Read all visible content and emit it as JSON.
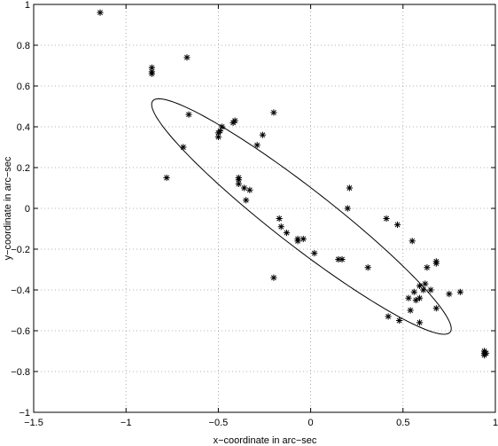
{
  "chart_data": {
    "type": "scatter",
    "title": "",
    "xlabel": "x−coordinate in arc−sec",
    "ylabel": "y−coordinate in arc−sec",
    "xlim": [
      -1.5,
      1
    ],
    "ylim": [
      -1,
      1
    ],
    "grid": true,
    "xticks": [
      -1.5,
      -1,
      -0.5,
      0,
      0.5,
      1
    ],
    "xtick_labels": [
      "−1.5",
      "−1",
      "−0.5",
      "0",
      "0.5",
      "1"
    ],
    "yticks": [
      -1,
      -0.8,
      -0.6,
      -0.4,
      -0.2,
      0,
      0.2,
      0.4,
      0.6,
      0.8,
      1
    ],
    "ytick_labels": [
      "−1",
      "−0.8",
      "−0.6",
      "−0.4",
      "−0.2",
      "0",
      "0.2",
      "0.4",
      "0.6",
      "0.8",
      "1"
    ],
    "series": [
      {
        "marker": "asterisk",
        "color": "#000000",
        "points": [
          [
            -1.14,
            0.96
          ],
          [
            -0.86,
            0.69
          ],
          [
            -0.86,
            0.67
          ],
          [
            -0.86,
            0.66
          ],
          [
            -0.67,
            0.74
          ],
          [
            -0.66,
            0.46
          ],
          [
            -0.69,
            0.3
          ],
          [
            -0.78,
            0.15
          ],
          [
            -0.5,
            0.35
          ],
          [
            -0.5,
            0.37
          ],
          [
            -0.49,
            0.38
          ],
          [
            -0.48,
            0.4
          ],
          [
            -0.42,
            0.42
          ],
          [
            -0.41,
            0.43
          ],
          [
            -0.26,
            0.36
          ],
          [
            -0.29,
            0.31
          ],
          [
            -0.2,
            0.47
          ],
          [
            -0.39,
            0.14
          ],
          [
            -0.39,
            0.12
          ],
          [
            -0.39,
            0.15
          ],
          [
            -0.36,
            0.1
          ],
          [
            -0.33,
            0.09
          ],
          [
            -0.35,
            0.04
          ],
          [
            -0.17,
            -0.05
          ],
          [
            -0.16,
            -0.09
          ],
          [
            -0.13,
            -0.12
          ],
          [
            -0.07,
            -0.16
          ],
          [
            -0.07,
            -0.15
          ],
          [
            -0.04,
            -0.15
          ],
          [
            0.02,
            -0.22
          ],
          [
            -0.2,
            -0.34
          ],
          [
            0.15,
            -0.25
          ],
          [
            0.17,
            -0.25
          ],
          [
            0.21,
            0.1
          ],
          [
            0.2,
            0.0
          ],
          [
            0.31,
            -0.29
          ],
          [
            0.41,
            -0.05
          ],
          [
            0.47,
            -0.08
          ],
          [
            0.55,
            -0.16
          ],
          [
            0.63,
            -0.29
          ],
          [
            0.68,
            -0.26
          ],
          [
            0.68,
            -0.27
          ],
          [
            0.42,
            -0.53
          ],
          [
            0.48,
            -0.55
          ],
          [
            0.54,
            -0.5
          ],
          [
            0.53,
            -0.44
          ],
          [
            0.56,
            -0.41
          ],
          [
            0.57,
            -0.45
          ],
          [
            0.59,
            -0.38
          ],
          [
            0.59,
            -0.44
          ],
          [
            0.61,
            -0.4
          ],
          [
            0.62,
            -0.37
          ],
          [
            0.65,
            -0.4
          ],
          [
            0.68,
            -0.49
          ],
          [
            0.59,
            -0.56
          ],
          [
            0.75,
            -0.42
          ],
          [
            0.81,
            -0.41
          ],
          [
            0.94,
            -0.7
          ],
          [
            0.94,
            -0.71
          ],
          [
            0.94,
            -0.72
          ],
          [
            0.95,
            -0.71
          ]
        ]
      }
    ],
    "ellipse": {
      "center": [
        -0.05,
        -0.04
      ],
      "semi_major": 0.985,
      "semi_minor": 0.145,
      "angle_deg": -35
    }
  }
}
